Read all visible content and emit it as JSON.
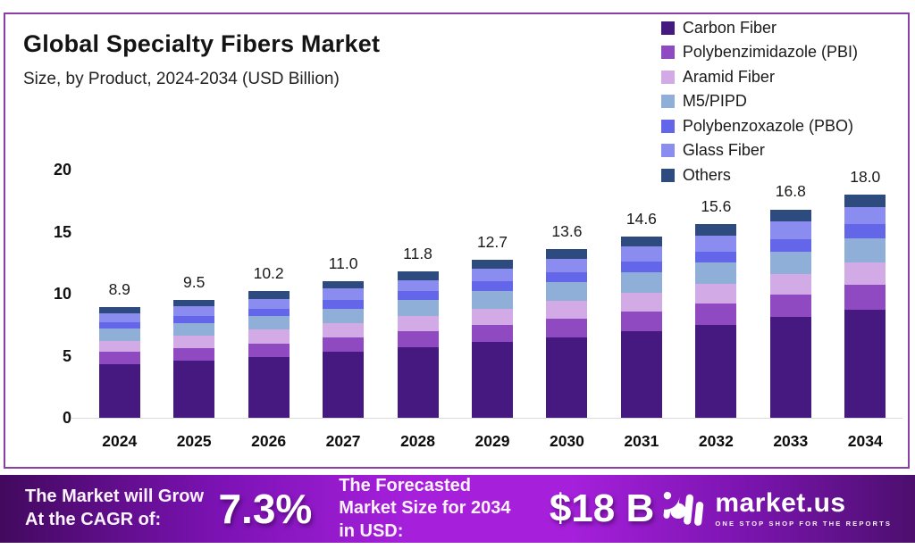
{
  "header": {
    "title": "Global Specialty Fibers Market",
    "subtitle": "Size, by Product, 2024-2034 (USD Billion)"
  },
  "chart_data": {
    "type": "bar",
    "stacked": true,
    "title": "Global Specialty Fibers Market Size, by Product, 2024-2034 (USD Billion)",
    "categories": [
      "2024",
      "2025",
      "2026",
      "2027",
      "2028",
      "2029",
      "2030",
      "2031",
      "2032",
      "2033",
      "2034"
    ],
    "totals": [
      8.9,
      9.5,
      10.2,
      11.0,
      11.8,
      12.7,
      13.6,
      14.6,
      15.6,
      16.8,
      18.0
    ],
    "series": [
      {
        "name": "Carbon Fiber",
        "color": "#461980",
        "values": [
          4.3,
          4.6,
          4.9,
          5.3,
          5.7,
          6.1,
          6.5,
          7.0,
          7.5,
          8.1,
          8.7
        ]
      },
      {
        "name": "Polybenzimidazole (PBI)",
        "color": "#8f4ac2",
        "values": [
          1.0,
          1.0,
          1.1,
          1.2,
          1.3,
          1.4,
          1.5,
          1.6,
          1.7,
          1.8,
          2.0
        ]
      },
      {
        "name": "Aramid Fiber",
        "color": "#d2abe6",
        "values": [
          0.9,
          1.0,
          1.1,
          1.1,
          1.2,
          1.3,
          1.4,
          1.5,
          1.6,
          1.7,
          1.8
        ]
      },
      {
        "name": "M5/PIPD",
        "color": "#8fafd8",
        "values": [
          1.0,
          1.0,
          1.1,
          1.2,
          1.3,
          1.4,
          1.5,
          1.6,
          1.7,
          1.8,
          2.0
        ]
      },
      {
        "name": "Polybenzoxazole (PBO)",
        "color": "#6366e8",
        "values": [
          0.5,
          0.6,
          0.6,
          0.7,
          0.7,
          0.8,
          0.8,
          0.9,
          0.9,
          1.0,
          1.1
        ]
      },
      {
        "name": "Glass Fiber",
        "color": "#8a8cf0",
        "values": [
          0.7,
          0.8,
          0.8,
          0.9,
          0.9,
          1.0,
          1.1,
          1.2,
          1.3,
          1.4,
          1.4
        ]
      },
      {
        "name": "Others",
        "color": "#2d4b7e",
        "values": [
          0.5,
          0.5,
          0.6,
          0.6,
          0.7,
          0.7,
          0.8,
          0.8,
          0.9,
          1.0,
          1.0
        ]
      }
    ],
    "xlabel": "",
    "ylabel": "",
    "ylim": [
      0,
      20
    ],
    "yticks": [
      0,
      5,
      10,
      15,
      20
    ],
    "grid": false,
    "legend_position": "top-right"
  },
  "footer": {
    "cagr_label": "The Market will Grow At the CAGR of:",
    "cagr_value": "7.3%",
    "forecast_label": "The Forecasted Market Size for 2034 in USD:",
    "forecast_value": "$18 B",
    "brand": {
      "name": "market.us",
      "tagline": "ONE STOP SHOP FOR THE REPORTS"
    }
  },
  "colors": {
    "card_border": "#8a3ea6",
    "axis_line": "#d9d9d9",
    "footer_gradient": [
      "#42095e",
      "#7c12b4",
      "#a620dc",
      "#a620dc",
      "#7a14ae",
      "#4c0f6e"
    ],
    "text_dark": "#141414",
    "footer_text": "#ffffff"
  }
}
